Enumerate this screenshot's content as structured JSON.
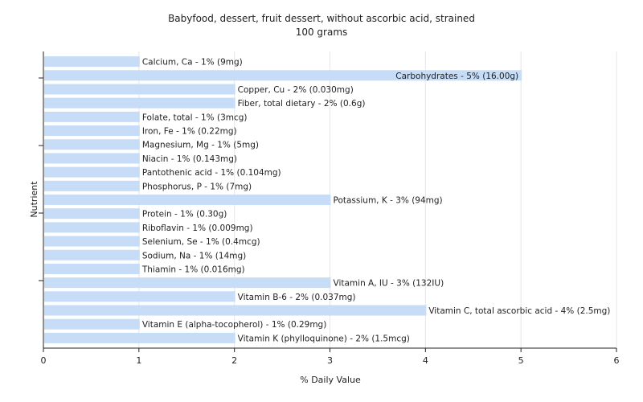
{
  "colors": {
    "bar": "#c6dcf7",
    "grid": "#e6e6e6",
    "axis": "#222222",
    "text": "#222222",
    "background": "#ffffff"
  },
  "chart_data": {
    "type": "bar",
    "orientation": "horizontal",
    "title": "Babyfood, dessert, fruit dessert, without ascorbic acid, strained",
    "subtitle": "100 grams",
    "xlabel": "% Daily Value",
    "ylabel": "Nutrient",
    "xlim": [
      0,
      6
    ],
    "xticks": [
      "0",
      "1",
      "2",
      "3",
      "4",
      "5",
      "6"
    ],
    "grid": true,
    "categories": [
      "Calcium, Ca",
      "Carbohydrates",
      "Copper, Cu",
      "Fiber, total dietary",
      "Folate, total",
      "Iron, Fe",
      "Magnesium, Mg",
      "Niacin",
      "Pantothenic acid",
      "Phosphorus, P",
      "Potassium, K",
      "Protein",
      "Riboflavin",
      "Selenium, Se",
      "Sodium, Na",
      "Thiamin",
      "Vitamin A, IU",
      "Vitamin B-6",
      "Vitamin C, total ascorbic acid",
      "Vitamin E (alpha-tocopherol)",
      "Vitamin K (phylloquinone)"
    ],
    "values": [
      1,
      5,
      2,
      2,
      1,
      1,
      1,
      1,
      1,
      1,
      3,
      1,
      1,
      1,
      1,
      1,
      3,
      2,
      4,
      1,
      2
    ],
    "labels": [
      "Calcium, Ca - 1% (9mg)",
      "Carbohydrates - 5% (16.00g)",
      "Copper, Cu - 2% (0.030mg)",
      "Fiber, total dietary - 2% (0.6g)",
      "Folate, total - 1% (3mcg)",
      "Iron, Fe - 1% (0.22mg)",
      "Magnesium, Mg - 1% (5mg)",
      "Niacin - 1% (0.143mg)",
      "Pantothenic acid - 1% (0.104mg)",
      "Phosphorus, P - 1% (7mg)",
      "Potassium, K - 3% (94mg)",
      "Protein - 1% (0.30g)",
      "Riboflavin - 1% (0.009mg)",
      "Selenium, Se - 1% (0.4mcg)",
      "Sodium, Na - 1% (14mg)",
      "Thiamin - 1% (0.016mg)",
      "Vitamin A, IU - 3% (132IU)",
      "Vitamin B-6 - 2% (0.037mg)",
      "Vitamin C, total ascorbic acid - 4% (2.5mg)",
      "Vitamin E (alpha-tocopherol) - 1% (0.29mg)",
      "Vitamin K (phylloquinone) - 2% (1.5mcg)"
    ]
  }
}
